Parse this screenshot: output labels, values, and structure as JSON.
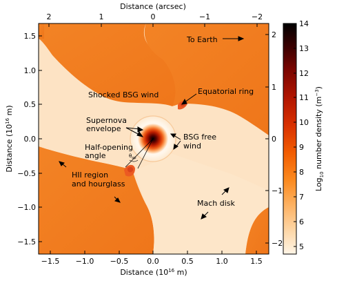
{
  "axes": {
    "x_bottom_label": "Distance (10",
    "x_bottom_label_exp": "16",
    "x_bottom_label_unit": " m)",
    "y_left_label": "Distance (10",
    "y_left_label_exp": "16",
    "y_left_label_unit": " m)",
    "x_top_label": "Distance (arcsec)",
    "x_bottom_ticks": [
      "−1.5",
      "−1.0",
      "−0.5",
      "0.0",
      "0.5",
      "1.0",
      "1.5"
    ],
    "y_left_ticks": [
      "1.5",
      "1.0",
      "0.5",
      "0.0",
      "−0.5",
      "−1.0",
      "−1.5"
    ],
    "x_top_ticks": [
      "2",
      "1",
      "0",
      "−1",
      "−2"
    ],
    "y_right_ticks": [
      "2",
      "1",
      "0",
      "−1",
      "−2"
    ]
  },
  "colorbar": {
    "label_prefix": "Log",
    "label_sub": "10",
    "label_mid": " number density (m",
    "label_exp": "−3",
    "label_suffix": ")",
    "ticks": [
      "14",
      "13",
      "12",
      "11",
      "10",
      "9",
      "8",
      "7",
      "6",
      "5"
    ],
    "colors": [
      "#000000",
      "#3a0000",
      "#7a0500",
      "#b01500",
      "#d83000",
      "#f25c00",
      "#fb8a1f",
      "#fdb66a",
      "#fdd7a8",
      "#fff0db"
    ]
  },
  "annotations": {
    "to_earth": "To Earth",
    "equatorial_ring": "Equatorial ring",
    "shocked_bsg_wind": "Shocked BSG wind",
    "supernova_line1": "Supernova",
    "supernova_line2": "envelope",
    "bsg_free_line1": "BSG free",
    "bsg_free_line2": "wind",
    "half_opening_line1": "Half-opening",
    "half_opening_line2": "angle",
    "theta": "θ",
    "theta_sub": "op",
    "hii_line1": "HII region",
    "hii_line2": "and hourglass",
    "mach_disk": "Mach disk"
  },
  "colors": {
    "orange": "#f07b1e",
    "pale": "#fde3c4",
    "paler": "#fff1de",
    "ring": "#f0642a"
  }
}
